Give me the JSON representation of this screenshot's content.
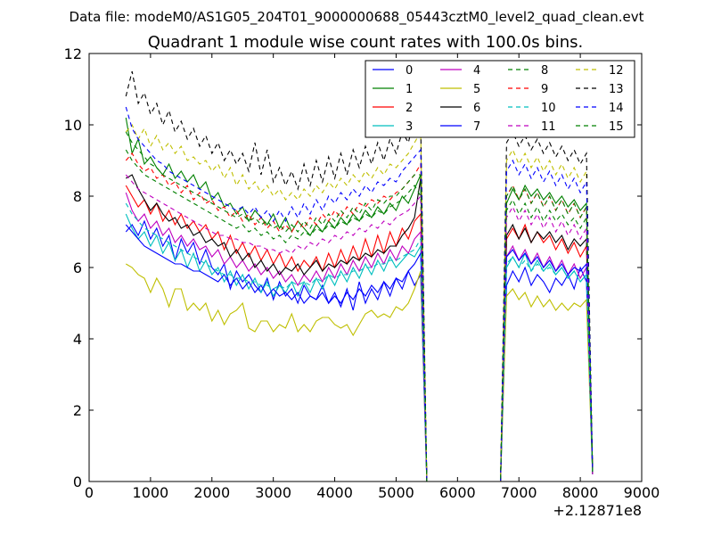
{
  "suptitle": "Data file: modeM0/AS1G05_204T01_9000000688_05443cztM0_level2_quad_clean.evt",
  "chart_data": {
    "type": "line",
    "title": "Quadrant 1 module wise count rates with 100.0s bins.",
    "x_offset_label": "+2.12871e8",
    "xlim": [
      0,
      9000
    ],
    "ylim": [
      0,
      12
    ],
    "x_ticks": [
      0,
      1000,
      2000,
      3000,
      4000,
      5000,
      6000,
      7000,
      8000,
      9000
    ],
    "y_ticks": [
      0,
      2,
      4,
      6,
      8,
      10,
      12
    ],
    "grid": false,
    "legend_position": "top-right",
    "legend_columns": 4,
    "x": [
      600,
      700,
      800,
      900,
      1000,
      1100,
      1200,
      1300,
      1400,
      1500,
      1600,
      1700,
      1800,
      1900,
      2000,
      2100,
      2200,
      2300,
      2400,
      2500,
      2600,
      2700,
      2800,
      2900,
      3000,
      3100,
      3200,
      3300,
      3400,
      3500,
      3600,
      3700,
      3800,
      3900,
      4000,
      4100,
      4200,
      4300,
      4400,
      4500,
      4600,
      4700,
      4800,
      4900,
      5000,
      5100,
      5200,
      5300,
      5400,
      5500,
      5600,
      6700,
      6800,
      6900,
      7000,
      7100,
      7200,
      7300,
      7400,
      7500,
      7600,
      7700,
      7800,
      7900,
      8000,
      8100,
      8200
    ],
    "series": [
      {
        "name": "0",
        "color": "#0000ff",
        "style": "solid",
        "values": [
          7.0,
          7.2,
          6.9,
          7.3,
          6.8,
          7.1,
          6.6,
          6.9,
          6.2,
          6.8,
          6.4,
          6.7,
          6.1,
          6.5,
          6.0,
          5.8,
          6.1,
          5.4,
          5.9,
          5.6,
          5.8,
          5.5,
          5.3,
          5.7,
          5.1,
          5.6,
          5.2,
          5.4,
          5.0,
          5.5,
          5.2,
          5.1,
          5.5,
          5.0,
          5.3,
          4.9,
          5.4,
          4.8,
          5.6,
          5.0,
          5.4,
          5.1,
          5.6,
          5.2,
          5.7,
          5.4,
          5.9,
          5.5,
          5.8,
          0.0,
          0.0,
          0.0,
          5.5,
          5.9,
          5.6,
          6.0,
          5.5,
          5.8,
          5.6,
          5.3,
          5.7,
          5.5,
          5.8,
          5.4,
          6.0,
          5.6,
          0.3
        ]
      },
      {
        "name": "1",
        "color": "#008000",
        "style": "solid",
        "values": [
          10.2,
          9.2,
          9.6,
          8.9,
          9.1,
          8.8,
          8.6,
          8.9,
          8.5,
          8.7,
          8.4,
          8.6,
          8.2,
          8.4,
          7.9,
          8.1,
          7.7,
          7.8,
          7.5,
          7.7,
          7.3,
          7.6,
          7.4,
          7.2,
          7.5,
          7.1,
          7.4,
          7.0,
          7.3,
          7.1,
          6.9,
          7.2,
          7.0,
          7.3,
          7.1,
          7.4,
          7.2,
          7.5,
          7.3,
          7.6,
          7.4,
          7.7,
          7.5,
          7.8,
          7.6,
          8.0,
          7.8,
          8.2,
          8.6,
          0.0,
          0.0,
          0.0,
          7.8,
          8.2,
          7.9,
          8.3,
          8.0,
          8.2,
          7.9,
          8.1,
          7.8,
          8.0,
          7.7,
          7.9,
          7.6,
          7.8,
          0.3
        ]
      },
      {
        "name": "2",
        "color": "#ff0000",
        "style": "solid",
        "values": [
          8.3,
          8.0,
          7.7,
          7.9,
          7.5,
          7.8,
          7.3,
          7.6,
          7.2,
          7.5,
          7.1,
          7.3,
          7.0,
          7.2,
          6.8,
          7.0,
          6.5,
          6.9,
          6.4,
          6.7,
          6.3,
          6.6,
          6.2,
          6.5,
          6.1,
          6.4,
          6.0,
          6.3,
          5.9,
          6.2,
          6.0,
          6.3,
          5.9,
          6.4,
          6.0,
          6.5,
          6.1,
          6.6,
          6.2,
          6.8,
          6.3,
          6.9,
          6.4,
          7.0,
          6.6,
          7.1,
          6.8,
          7.3,
          7.5,
          0.0,
          0.0,
          0.0,
          6.8,
          7.1,
          6.8,
          7.2,
          6.7,
          7.0,
          6.7,
          6.9,
          6.5,
          6.8,
          6.4,
          6.7,
          6.3,
          6.6,
          0.3
        ]
      },
      {
        "name": "3",
        "color": "#00bfbf",
        "style": "solid",
        "values": [
          7.5,
          7.1,
          6.8,
          7.0,
          6.6,
          6.9,
          6.4,
          6.7,
          6.2,
          6.5,
          6.0,
          6.4,
          5.9,
          6.2,
          5.8,
          6.0,
          5.6,
          5.9,
          5.5,
          5.8,
          5.4,
          5.7,
          5.3,
          5.6,
          5.2,
          5.5,
          5.3,
          5.6,
          5.2,
          5.6,
          5.3,
          5.7,
          5.4,
          5.8,
          5.5,
          5.9,
          5.6,
          6.0,
          5.7,
          6.1,
          5.8,
          6.2,
          5.9,
          6.3,
          6.0,
          6.2,
          6.4,
          6.3,
          6.6,
          0.0,
          0.0,
          0.0,
          6.0,
          6.3,
          6.0,
          6.4,
          5.9,
          6.2,
          5.9,
          6.1,
          5.8,
          6.0,
          5.7,
          5.9,
          5.6,
          5.8,
          0.3
        ]
      },
      {
        "name": "4",
        "color": "#bf00bf",
        "style": "solid",
        "values": [
          8.1,
          7.6,
          7.3,
          7.5,
          7.1,
          7.3,
          6.9,
          7.1,
          6.7,
          6.9,
          6.6,
          6.8,
          6.5,
          6.6,
          6.3,
          6.5,
          6.1,
          6.3,
          6.0,
          6.2,
          5.9,
          6.1,
          5.8,
          6.0,
          5.7,
          5.9,
          5.6,
          5.8,
          5.5,
          5.8,
          5.6,
          5.9,
          5.6,
          6.0,
          5.7,
          6.1,
          5.8,
          6.2,
          5.9,
          6.3,
          6.0,
          6.4,
          6.1,
          6.5,
          6.2,
          6.6,
          6.4,
          6.8,
          7.0,
          0.0,
          0.0,
          0.0,
          6.3,
          6.6,
          6.2,
          6.5,
          6.1,
          6.4,
          6.0,
          6.3,
          5.9,
          6.2,
          5.8,
          6.1,
          5.7,
          6.0,
          0.3
        ]
      },
      {
        "name": "5",
        "color": "#bfbf00",
        "style": "solid",
        "values": [
          6.1,
          6.0,
          5.8,
          5.7,
          5.3,
          5.7,
          5.4,
          4.9,
          5.4,
          5.4,
          4.8,
          5.0,
          4.8,
          5.0,
          4.5,
          4.8,
          4.4,
          4.7,
          4.8,
          5.0,
          4.3,
          4.2,
          4.5,
          4.5,
          4.2,
          4.4,
          4.3,
          4.7,
          4.2,
          4.4,
          4.2,
          4.5,
          4.6,
          4.6,
          4.4,
          4.3,
          4.4,
          4.1,
          4.4,
          4.7,
          4.8,
          4.6,
          4.7,
          4.6,
          4.9,
          4.8,
          5.0,
          5.4,
          5.9,
          0.0,
          0.0,
          0.0,
          5.2,
          5.4,
          5.1,
          5.3,
          4.9,
          5.2,
          4.9,
          5.1,
          4.8,
          5.0,
          4.8,
          5.0,
          4.9,
          5.1,
          0.2
        ]
      },
      {
        "name": "6",
        "color": "#000000",
        "style": "solid",
        "values": [
          8.5,
          8.6,
          8.2,
          7.9,
          7.6,
          7.8,
          7.5,
          7.3,
          7.4,
          7.1,
          7.2,
          6.9,
          7.0,
          6.7,
          6.8,
          6.6,
          6.7,
          6.3,
          6.5,
          6.2,
          6.4,
          6.0,
          6.2,
          5.9,
          6.1,
          5.8,
          6.0,
          5.9,
          6.1,
          5.8,
          6.0,
          6.2,
          5.9,
          6.1,
          6.0,
          6.2,
          6.1,
          6.3,
          6.2,
          6.4,
          6.3,
          6.5,
          6.4,
          6.6,
          6.6,
          6.9,
          7.1,
          7.4,
          8.5,
          0.0,
          0.0,
          0.0,
          6.9,
          7.2,
          6.8,
          7.1,
          6.7,
          7.0,
          6.8,
          7.0,
          6.7,
          6.9,
          6.5,
          6.8,
          6.6,
          6.8,
          0.2
        ]
      },
      {
        "name": "7",
        "color": "#0000ff",
        "style": "solid",
        "values": [
          7.2,
          7.0,
          6.8,
          6.6,
          6.5,
          6.4,
          6.3,
          6.2,
          6.1,
          6.1,
          6.0,
          5.9,
          5.9,
          5.8,
          5.7,
          5.6,
          5.8,
          5.5,
          5.7,
          5.4,
          5.6,
          5.3,
          5.5,
          5.2,
          5.4,
          5.2,
          5.3,
          5.1,
          5.3,
          5.0,
          5.2,
          5.1,
          5.3,
          5.0,
          5.2,
          5.0,
          5.3,
          5.1,
          5.4,
          5.2,
          5.5,
          5.3,
          5.6,
          5.4,
          5.7,
          5.6,
          5.9,
          6.1,
          6.4,
          0.0,
          0.0,
          0.0,
          6.3,
          6.5,
          6.2,
          6.4,
          6.1,
          6.3,
          6.0,
          6.2,
          5.9,
          6.1,
          5.8,
          6.0,
          5.9,
          6.1,
          0.2
        ]
      },
      {
        "name": "8",
        "color": "#008000",
        "style": "dashed",
        "values": [
          9.3,
          9.0,
          8.8,
          8.6,
          8.5,
          8.4,
          8.3,
          8.2,
          8.1,
          8.0,
          7.9,
          7.8,
          7.7,
          7.6,
          7.5,
          7.4,
          7.3,
          7.2,
          7.1,
          7.2,
          7.0,
          7.1,
          6.9,
          7.0,
          6.8,
          6.9,
          6.7,
          6.9,
          6.8,
          7.0,
          6.9,
          7.1,
          7.0,
          7.2,
          7.1,
          7.3,
          7.2,
          7.4,
          7.3,
          7.5,
          7.4,
          7.6,
          7.5,
          7.7,
          7.8,
          7.9,
          8.1,
          8.3,
          8.0,
          0.0,
          0.0,
          0.0,
          7.6,
          7.9,
          7.5,
          7.8,
          7.4,
          7.7,
          7.3,
          7.6,
          7.3,
          7.5,
          7.2,
          7.4,
          7.1,
          7.4,
          0.2
        ]
      },
      {
        "name": "9",
        "color": "#ff0000",
        "style": "dashed",
        "values": [
          9.0,
          9.2,
          8.9,
          8.7,
          8.8,
          8.5,
          8.6,
          8.3,
          8.4,
          8.1,
          8.3,
          7.9,
          8.1,
          7.8,
          7.9,
          7.6,
          7.7,
          7.4,
          7.6,
          7.3,
          7.5,
          7.2,
          7.4,
          7.1,
          7.3,
          7.0,
          7.2,
          7.0,
          7.3,
          7.1,
          7.4,
          7.2,
          7.5,
          7.3,
          7.6,
          7.4,
          7.7,
          7.5,
          7.8,
          7.7,
          7.9,
          7.8,
          8.0,
          7.9,
          8.1,
          8.2,
          8.4,
          8.6,
          8.9,
          0.0,
          0.0,
          0.0,
          8.0,
          8.3,
          7.9,
          8.2,
          7.8,
          8.1,
          7.7,
          8.0,
          7.6,
          7.9,
          7.5,
          7.8,
          7.4,
          7.7,
          0.3
        ]
      },
      {
        "name": "10",
        "color": "#00bfbf",
        "style": "dashed",
        "values": [
          7.8,
          7.5,
          7.3,
          7.1,
          7.0,
          6.9,
          6.8,
          6.7,
          6.6,
          6.5,
          6.4,
          6.3,
          6.2,
          6.1,
          6.0,
          5.9,
          5.8,
          5.8,
          5.7,
          5.7,
          5.6,
          5.6,
          5.5,
          5.5,
          5.4,
          5.5,
          5.4,
          5.6,
          5.5,
          5.6,
          5.5,
          5.7,
          5.6,
          5.8,
          5.7,
          5.8,
          5.8,
          5.9,
          5.9,
          6.0,
          6.0,
          6.1,
          6.1,
          6.2,
          6.2,
          6.3,
          6.4,
          6.5,
          6.8,
          0.0,
          0.0,
          0.0,
          6.1,
          6.3,
          6.0,
          6.2,
          5.9,
          6.1,
          5.9,
          6.0,
          5.8,
          6.0,
          5.7,
          5.9,
          5.6,
          5.8,
          0.2
        ]
      },
      {
        "name": "11",
        "color": "#bf00bf",
        "style": "dashed",
        "values": [
          8.6,
          8.4,
          8.2,
          8.1,
          8.0,
          7.9,
          7.8,
          7.7,
          7.6,
          7.5,
          7.4,
          7.3,
          7.2,
          7.1,
          7.0,
          6.9,
          6.9,
          6.8,
          6.8,
          6.7,
          6.7,
          6.6,
          6.6,
          6.5,
          6.5,
          6.4,
          6.5,
          6.4,
          6.6,
          6.5,
          6.7,
          6.6,
          6.8,
          6.7,
          6.9,
          6.8,
          7.0,
          6.9,
          7.1,
          7.0,
          7.2,
          7.1,
          7.3,
          7.2,
          7.4,
          7.5,
          7.6,
          7.8,
          8.0,
          0.0,
          0.0,
          0.0,
          7.4,
          7.7,
          7.3,
          7.6,
          7.2,
          7.5,
          7.1,
          7.4,
          7.0,
          7.3,
          6.9,
          7.2,
          6.8,
          7.1,
          0.2
        ]
      },
      {
        "name": "12",
        "color": "#bfbf00",
        "style": "dashed",
        "values": [
          9.8,
          10.0,
          9.6,
          9.9,
          9.4,
          9.7,
          9.3,
          9.5,
          9.2,
          9.4,
          9.0,
          9.1,
          8.9,
          9.0,
          8.7,
          8.9,
          8.5,
          8.8,
          8.3,
          8.6,
          8.2,
          8.4,
          8.1,
          8.3,
          8.0,
          8.2,
          7.9,
          8.1,
          7.9,
          8.2,
          8.0,
          8.3,
          8.1,
          8.4,
          8.2,
          8.5,
          8.3,
          8.6,
          8.4,
          8.7,
          8.5,
          8.8,
          8.6,
          8.9,
          8.8,
          9.0,
          9.2,
          9.5,
          9.8,
          0.0,
          0.0,
          0.0,
          9.0,
          9.3,
          8.9,
          9.2,
          8.8,
          9.1,
          8.7,
          9.0,
          8.6,
          8.9,
          8.5,
          8.8,
          8.4,
          8.7,
          0.3
        ]
      },
      {
        "name": "13",
        "color": "#000000",
        "style": "dashed",
        "values": [
          10.8,
          11.5,
          10.6,
          10.9,
          10.3,
          10.6,
          10.0,
          10.4,
          9.8,
          10.1,
          9.6,
          9.9,
          9.4,
          9.7,
          9.2,
          9.5,
          9.0,
          9.3,
          8.9,
          9.2,
          8.7,
          9.5,
          8.6,
          9.3,
          8.4,
          8.8,
          8.3,
          8.7,
          8.2,
          8.9,
          8.3,
          9.0,
          8.4,
          9.1,
          8.5,
          9.2,
          8.6,
          9.3,
          8.8,
          9.4,
          8.9,
          9.5,
          9.0,
          9.6,
          9.2,
          9.8,
          9.5,
          10.2,
          10.0,
          0.0,
          0.0,
          0.0,
          9.5,
          9.8,
          9.4,
          9.7,
          9.3,
          9.6,
          9.2,
          9.5,
          9.1,
          9.4,
          9.0,
          9.3,
          8.9,
          9.2,
          0.3
        ]
      },
      {
        "name": "14",
        "color": "#0000ff",
        "style": "dashed",
        "values": [
          10.5,
          9.9,
          9.6,
          9.4,
          9.2,
          9.0,
          8.9,
          8.7,
          8.6,
          8.5,
          8.4,
          8.3,
          8.2,
          8.1,
          8.0,
          7.9,
          7.8,
          7.7,
          7.6,
          7.7,
          7.5,
          7.7,
          7.4,
          7.6,
          7.3,
          7.6,
          7.3,
          7.7,
          7.4,
          7.8,
          7.5,
          7.9,
          7.6,
          8.0,
          7.8,
          8.1,
          7.9,
          8.2,
          8.0,
          8.3,
          8.1,
          8.4,
          8.3,
          8.5,
          8.4,
          8.7,
          8.9,
          9.1,
          9.3,
          0.0,
          0.0,
          0.0,
          8.7,
          9.0,
          8.6,
          8.9,
          8.5,
          8.8,
          8.4,
          8.7,
          8.3,
          8.6,
          8.2,
          8.5,
          8.1,
          8.4,
          0.3
        ]
      },
      {
        "name": "15",
        "color": "#008000",
        "style": "dashed",
        "values": [
          9.8,
          9.5,
          9.3,
          9.1,
          8.9,
          8.8,
          8.6,
          8.5,
          8.4,
          8.3,
          8.2,
          8.1,
          8.0,
          7.9,
          7.8,
          7.7,
          7.6,
          7.5,
          7.4,
          7.5,
          7.3,
          7.4,
          7.2,
          7.3,
          7.1,
          7.2,
          7.0,
          7.2,
          7.0,
          7.3,
          7.1,
          7.4,
          7.2,
          7.5,
          7.3,
          7.6,
          7.4,
          7.7,
          7.5,
          7.8,
          7.6,
          7.9,
          7.8,
          8.0,
          8.0,
          8.2,
          8.4,
          8.6,
          8.6,
          0.0,
          0.0,
          0.0,
          8.0,
          8.3,
          7.9,
          8.2,
          7.8,
          8.1,
          7.7,
          8.0,
          7.6,
          7.9,
          7.5,
          7.8,
          7.4,
          7.7,
          0.3
        ]
      }
    ]
  }
}
